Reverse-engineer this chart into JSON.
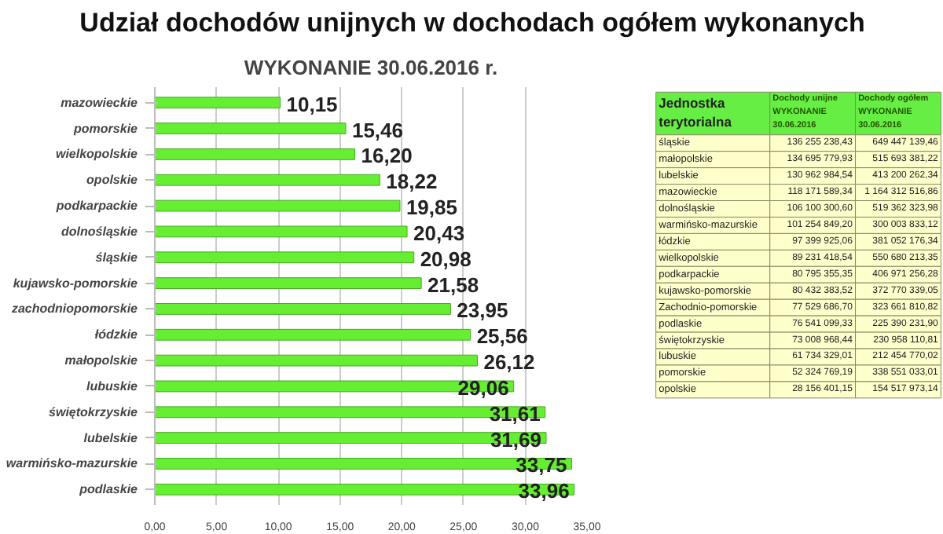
{
  "chart_data": [
    {
      "type": "bar",
      "orientation": "horizontal",
      "title": "Udział dochodów unijnych w dochodach ogółem wykonanych",
      "subtitle": "WYKONANIE 30.06.2016 r.",
      "categories": [
        "mazowieckie",
        "pomorskie",
        "wielkopolskie",
        "opolskie",
        "podkarpackie",
        "dolnośląskie",
        "śląskie",
        "kujawsko-pomorskie",
        "zachodniopomorskie",
        "łódzkie",
        "małopolskie",
        "lubuskie",
        "świętokrzyskie",
        "lubelskie",
        "warmińsko-mazurskie",
        "podlaskie"
      ],
      "values": [
        10.15,
        15.46,
        16.2,
        18.22,
        19.85,
        20.43,
        20.98,
        21.58,
        23.95,
        25.56,
        26.12,
        29.06,
        31.61,
        31.69,
        33.75,
        33.96
      ],
      "value_labels": [
        "10,15",
        "15,46",
        "16,20",
        "18,22",
        "19,85",
        "20,43",
        "20,98",
        "21,58",
        "23,95",
        "25,56",
        "26,12",
        "29,06",
        "31,61",
        "31,69",
        "33,75",
        "33,96"
      ],
      "color": "#66ee33",
      "xlim": [
        0,
        35
      ],
      "xticks": [
        {
          "value": 0,
          "label": "0,00"
        },
        {
          "value": 5,
          "label": "5,00"
        },
        {
          "value": 10,
          "label": "10,00"
        },
        {
          "value": 15,
          "label": "15,00"
        },
        {
          "value": 20,
          "label": "20,00"
        },
        {
          "value": 25,
          "label": "25,00"
        },
        {
          "value": 30,
          "label": "30,00"
        },
        {
          "value": 35,
          "label": "35,00"
        }
      ],
      "grid": "x"
    },
    {
      "type": "other",
      "annotations": [
        "Jednostka terytorialna",
        "Dochody unijne WYKONANIE 30.06.2016",
        "Dochody ogółem WYKONANIE 30.06.2016",
        "śląskie",
        "136 255 238,43",
        "649 447 139,46",
        "małopolskie",
        "134 695 779,93",
        "515 693 381,22",
        "lubelskie",
        "130 962 984,54",
        "413 200 262,34",
        "mazowieckie",
        "118 171 589,34",
        "1 164 312 516,86",
        "dolnośląskie",
        "106 100 300,60",
        "519 362 323,98",
        "warmińsko-mazurskie",
        "101 254 849,20",
        "300 003 833,12",
        "łódzkie",
        "97 399 925,06",
        "381 052 176,34",
        "wielkopolskie",
        "89 231 418,54",
        "550 680 213,35",
        "podkarpackie",
        "80 795 355,35",
        "406 971 256,28",
        "kujawsko-pomorskie",
        "80 432 383,52",
        "372 770 339,05",
        "Zachodnio-pomorskie",
        "77 529 686,70",
        "323 661 810,82",
        "podlaskie",
        "76 541 099,33",
        "225 390 231,90",
        "świętokrzyskie",
        "73 008 968,44",
        "230 958 110,81",
        "lubuskie",
        "61 734 329,01",
        "212 454 770,02",
        "pomorskie",
        "52 324 769,19",
        "338 551 033,01",
        "opolskie",
        "28 156 401,15",
        "154 517 973,14"
      ]
    }
  ]
}
